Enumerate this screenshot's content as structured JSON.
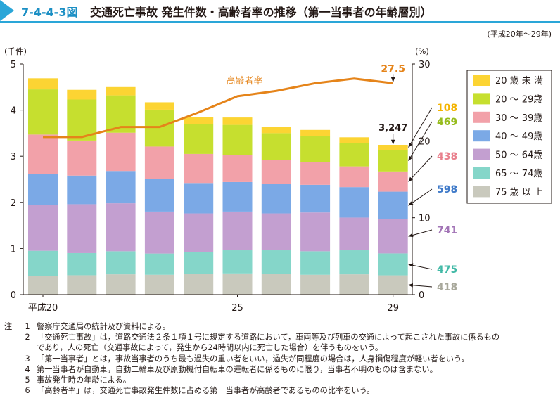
{
  "figure": {
    "number": "7-4-4-3図",
    "title": "交通死亡事故 発生件数・高齢者率の推移（第一当事者の年齢層別）",
    "period": "(平成20年～29年)"
  },
  "chart_data": {
    "type": "stacked-bar+line",
    "left_axis_unit": "(千件)",
    "right_axis_unit": "(%)",
    "ylim_left": [
      0,
      5
    ],
    "ylim_right": [
      0,
      30
    ],
    "left_ticks": [
      "0",
      "1",
      "2",
      "3",
      "4",
      "5"
    ],
    "right_ticks": [
      {
        "value": 0,
        "label": "0"
      },
      {
        "value": 10,
        "label": "10"
      },
      {
        "value": 20,
        "label": "20"
      },
      {
        "value": 30,
        "label": "30"
      }
    ],
    "x_labels": [
      {
        "index": 0,
        "label": "平成20"
      },
      {
        "index": 5,
        "label": "25"
      },
      {
        "index": 9,
        "label": "29"
      }
    ],
    "years": [
      20,
      21,
      22,
      23,
      24,
      25,
      26,
      27,
      28,
      29
    ],
    "series": [
      {
        "name": "75 歳 以 上",
        "color": "#c9c9bd",
        "values": [
          0.4,
          0.42,
          0.44,
          0.43,
          0.45,
          0.46,
          0.45,
          0.43,
          0.44,
          0.418
        ]
      },
      {
        "name": "65 ～ 74歳",
        "color": "#85d6c9",
        "values": [
          0.55,
          0.48,
          0.5,
          0.46,
          0.48,
          0.5,
          0.51,
          0.51,
          0.52,
          0.475
        ]
      },
      {
        "name": "50 ～ 64歳",
        "color": "#c39fd0",
        "values": [
          1.0,
          1.06,
          1.04,
          0.91,
          0.83,
          0.84,
          0.8,
          0.84,
          0.71,
          0.741
        ]
      },
      {
        "name": "40 ～ 49歳",
        "color": "#7ba9e6",
        "values": [
          0.67,
          0.62,
          0.7,
          0.7,
          0.66,
          0.64,
          0.64,
          0.6,
          0.66,
          0.598
        ]
      },
      {
        "name": "30 ～ 39歳",
        "color": "#f2a1a9",
        "values": [
          0.85,
          0.76,
          0.83,
          0.71,
          0.63,
          0.58,
          0.52,
          0.49,
          0.45,
          0.438
        ]
      },
      {
        "name": "20 ～ 29歳",
        "color": "#c6df2f",
        "values": [
          0.98,
          0.89,
          0.81,
          0.8,
          0.65,
          0.66,
          0.58,
          0.56,
          0.51,
          0.469
        ]
      },
      {
        "name": "20 歳 未 満",
        "color": "#fcd433",
        "values": [
          0.24,
          0.21,
          0.18,
          0.16,
          0.15,
          0.16,
          0.14,
          0.14,
          0.12,
          0.108
        ]
      }
    ],
    "line": {
      "name": "高齢者率",
      "color": "#e5841a",
      "values": [
        20.5,
        20.5,
        21.8,
        21.8,
        23.7,
        25.8,
        26.5,
        27.5,
        28.1,
        27.5
      ]
    },
    "line_end_label": "27.5",
    "total_label": "3,247",
    "last_bar_labels": [
      {
        "text": "108",
        "color": "#f4b400",
        "series": 6
      },
      {
        "text": "469",
        "color": "#96bc1d",
        "series": 5
      },
      {
        "text": "438",
        "color": "#e97f8c",
        "series": 4
      },
      {
        "text": "598",
        "color": "#3f7ac9",
        "series": 3
      },
      {
        "text": "741",
        "color": "#a274b6",
        "series": 2
      },
      {
        "text": "475",
        "color": "#41b9a6",
        "series": 1
      },
      {
        "text": "418",
        "color": "#a8a89b",
        "series": 0
      }
    ]
  },
  "notes": {
    "lead": "注",
    "items": [
      {
        "n": "1",
        "text": "警察庁交通局の統計及び資料による。"
      },
      {
        "n": "2",
        "text": "「交通死亡事故」は，道路交通法２条１項１号に規定する道路において，車両等及び列車の交通によって起こされた事故に係るもの"
      },
      {
        "n": "",
        "text": "であり，人の死亡（交通事故によって，発生から24時間以内に死亡した場合）を伴うものをいう。"
      },
      {
        "n": "3",
        "text": "「第一当事者」とは，事故当事者のうち最も過失の重い者をいい，過失が同程度の場合は，人身損傷程度が軽い者をいう。"
      },
      {
        "n": "4",
        "text": "第一当事者が自動車，自動二輪車及び原動機付自転車の運転者に係るものに限り，当事者不明のものは含まない。"
      },
      {
        "n": "5",
        "text": "事故発生時の年齢による。"
      },
      {
        "n": "6",
        "text": "「高齢者率」は，交通死亡事故発生件数に占める第一当事者が高齢者であるものの比率をいう。"
      }
    ]
  }
}
